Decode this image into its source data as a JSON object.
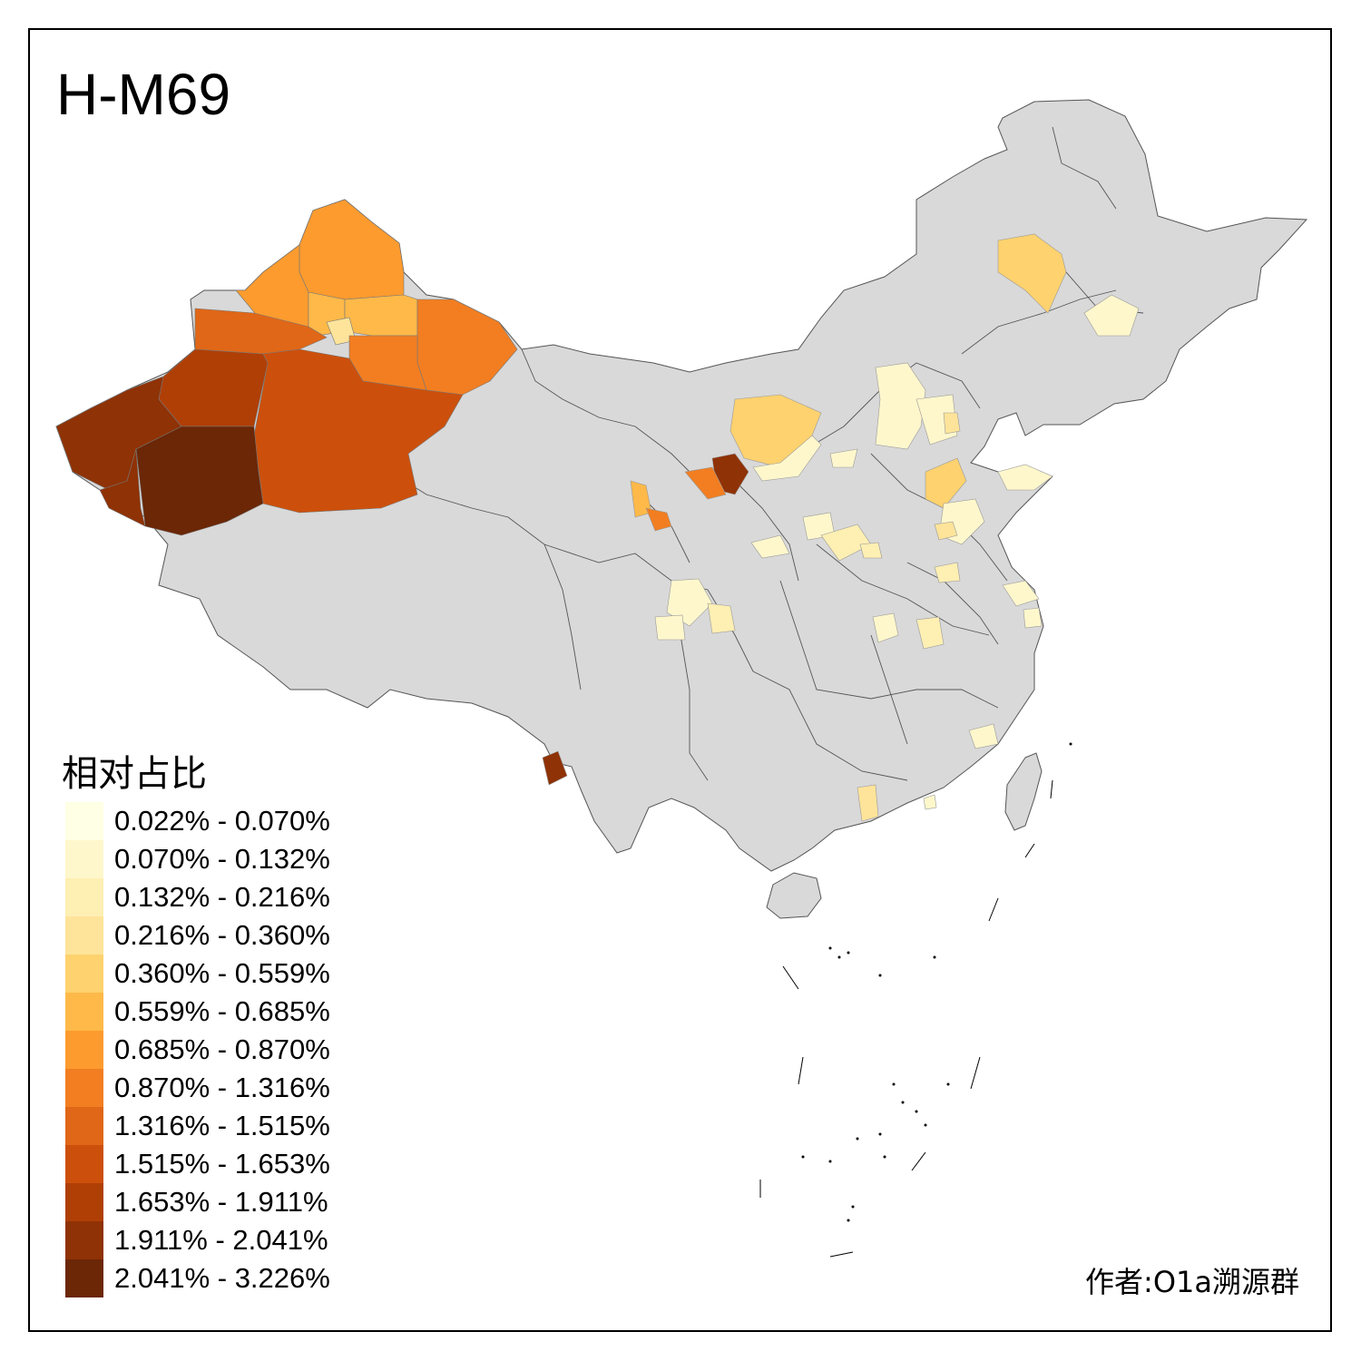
{
  "title": "H-M69",
  "legend": {
    "title": "相对占比",
    "items": [
      {
        "label": "0.022% - 0.070%",
        "color": "#FFFFE5"
      },
      {
        "label": "0.070% - 0.132%",
        "color": "#FFF7CC"
      },
      {
        "label": "0.132% - 0.216%",
        "color": "#FEEFB3"
      },
      {
        "label": "0.216% - 0.360%",
        "color": "#FEE49A"
      },
      {
        "label": "0.360% - 0.559%",
        "color": "#FED26E"
      },
      {
        "label": "0.559% - 0.685%",
        "color": "#FEB949"
      },
      {
        "label": "0.685% - 0.870%",
        "color": "#FD9B2E"
      },
      {
        "label": "0.870% - 1.316%",
        "color": "#F27E21"
      },
      {
        "label": "1.316% - 1.515%",
        "color": "#E06717"
      },
      {
        "label": "1.515% - 1.653%",
        "color": "#CC500C"
      },
      {
        "label": "1.653% - 1.911%",
        "color": "#B03F06"
      },
      {
        "label": "1.911% - 2.041%",
        "color": "#8F3205"
      },
      {
        "label": "2.041% - 3.226%",
        "color": "#6B2706"
      }
    ]
  },
  "credit": "作者:O1a溯源群",
  "colors": {
    "no_data": "#D9D9D9",
    "boundary": "#555555"
  }
}
